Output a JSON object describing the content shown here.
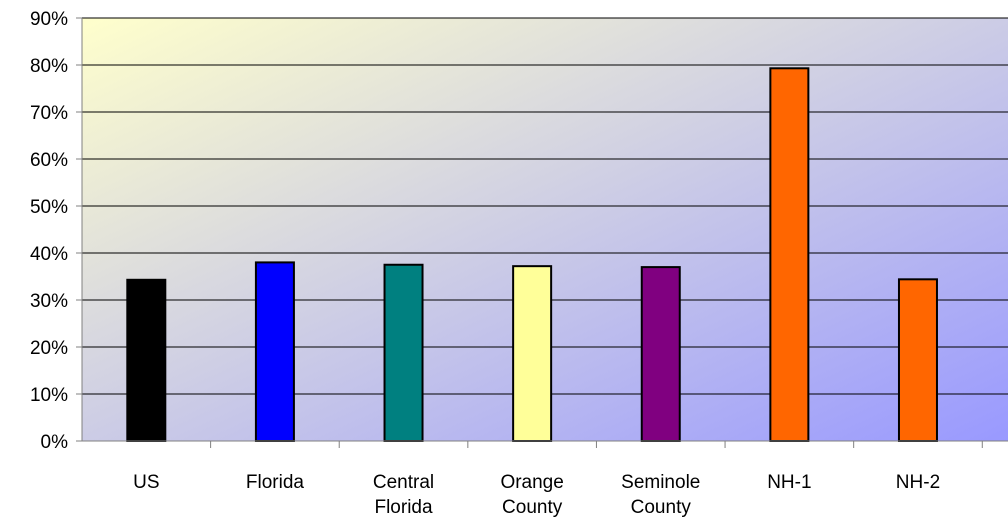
{
  "chart_data": {
    "type": "bar",
    "categories": [
      [
        "US"
      ],
      [
        "Florida"
      ],
      [
        "Central",
        "Florida"
      ],
      [
        "Orange",
        "County"
      ],
      [
        "Seminole",
        "County"
      ],
      [
        "NH-1"
      ],
      [
        "NH-2"
      ]
    ],
    "values": [
      0.343,
      0.38,
      0.375,
      0.372,
      0.37,
      0.793,
      0.344
    ],
    "bar_colors": [
      "#000000",
      "#0000ff",
      "#008080",
      "#ffff99",
      "#800080",
      "#ff6600",
      "#ff6600"
    ],
    "ylim": [
      0,
      0.9
    ],
    "y_ticks": [
      "0%",
      "10%",
      "20%",
      "30%",
      "40%",
      "50%",
      "60%",
      "70%",
      "80%",
      "90%"
    ],
    "title": "",
    "xlabel": "",
    "ylabel": "",
    "grid": true,
    "background_gradient": [
      "#ffffcc",
      "#9999ff"
    ]
  }
}
